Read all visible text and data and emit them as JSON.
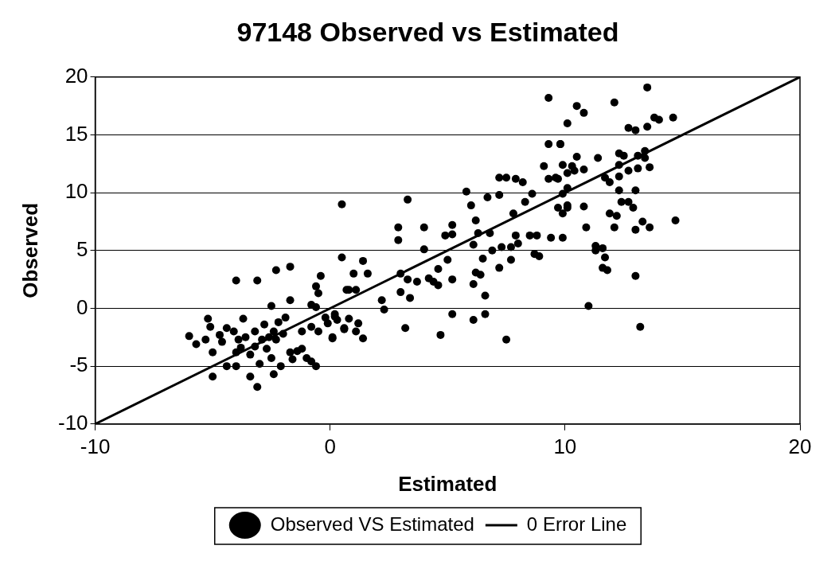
{
  "chart_data": {
    "type": "scatter",
    "title": "97148 Observed vs Estimated",
    "xlabel": "Estimated",
    "ylabel": "Observed",
    "xlim": [
      -10,
      20
    ],
    "ylim": [
      -10,
      20
    ],
    "xticks": [
      -10,
      0,
      10,
      20
    ],
    "yticks": [
      -10,
      -5,
      0,
      5,
      10,
      15,
      20
    ],
    "grid": "y",
    "legend": "bottom",
    "series": [
      {
        "name": "Observed VS Estimated",
        "type": "scatter",
        "marker": "circle",
        "color": "#000000",
        "x": [
          -4.0,
          -3.1,
          -2.3,
          -1.7,
          -0.4,
          -0.6,
          -0.5,
          -2.5,
          -1.7,
          -0.8,
          -0.6,
          0.5,
          0.5,
          0.7,
          -5.2,
          -5.1,
          -6.0,
          -5.7,
          -5.3,
          -5.0,
          -4.7,
          -4.6,
          -4.4,
          -4.4,
          -5.0,
          -4.1,
          -3.9,
          -3.8,
          -4.0,
          -3.7,
          -3.6,
          -3.4,
          -3.4,
          -3.1,
          -3.0,
          -3.2,
          -2.9,
          -2.8,
          -2.7,
          -2.5,
          -2.4,
          -2.4,
          -2.3,
          -2.2,
          -2.1,
          -1.9,
          -2.0,
          -1.7,
          -1.6,
          -1.4,
          -1.2,
          -1.2,
          -1.0,
          -0.8,
          -0.6,
          -0.8,
          -0.5,
          -0.2,
          -0.1,
          0.1,
          0.2,
          0.6,
          -4.0,
          -3.2,
          -2.6,
          0.2,
          0.3,
          0.1,
          0.8,
          0.6,
          1.2,
          1.1,
          1.4,
          1.0,
          1.4,
          1.6,
          0.8,
          1.1,
          2.2,
          2.3,
          3.2,
          2.9,
          2.9,
          3.3,
          3.0,
          3.0,
          3.3,
          3.4,
          3.7,
          4.0,
          4.0,
          4.2,
          4.4,
          4.6,
          4.6,
          4.7,
          4.9,
          5.0,
          5.2,
          5.2,
          5.2,
          5.2,
          5.8,
          6.0,
          6.2,
          6.1,
          6.1,
          6.2,
          6.4,
          6.5,
          6.6,
          6.6,
          6.1,
          6.3,
          6.8,
          6.7,
          6.9,
          7.2,
          7.2,
          7.2,
          7.3,
          7.5,
          7.5,
          7.7,
          7.7,
          7.8,
          7.9,
          8.0,
          7.9,
          8.2,
          8.3,
          8.5,
          8.8,
          8.6,
          8.7,
          8.9,
          9.1,
          9.3,
          9.3,
          9.3,
          9.4,
          9.7,
          9.8,
          9.9,
          9.9,
          10.1,
          10.1,
          9.9,
          10.1,
          10.1,
          9.9,
          13.5,
          12.1,
          10.5,
          10.8,
          13.8,
          14.0,
          14.6,
          13.5,
          12.7,
          13.0,
          9.8,
          10.5,
          11.4,
          12.3,
          12.5,
          13.4,
          13.4,
          13.1,
          10.3,
          10.4,
          10.8,
          12.3,
          13.6,
          12.7,
          13.1,
          11.7,
          11.9,
          12.3,
          9.6,
          13.0,
          12.3,
          10.1,
          12.4,
          12.7,
          12.9,
          9.7,
          10.8,
          11.9,
          12.2,
          10.9,
          12.1,
          13.0,
          13.3,
          13.6,
          14.7,
          11.3,
          11.3,
          11.6,
          11.7,
          11.6,
          11.8,
          13.0,
          11.0,
          13.2
        ],
        "values": [
          2.4,
          2.4,
          3.3,
          3.6,
          2.8,
          1.9,
          1.3,
          0.2,
          0.7,
          0.3,
          0.1,
          9.0,
          4.4,
          1.6,
          -0.9,
          -1.6,
          -2.4,
          -3.1,
          -2.7,
          -3.8,
          -2.3,
          -2.9,
          -1.7,
          -5.0,
          -5.9,
          -2.0,
          -2.7,
          -3.4,
          -5.0,
          -0.9,
          -2.5,
          -4.0,
          -5.9,
          -6.8,
          -4.8,
          -2.0,
          -2.7,
          -1.4,
          -3.5,
          -4.3,
          -2.0,
          -5.7,
          -2.7,
          -1.2,
          -5.0,
          -0.8,
          -2.2,
          -3.8,
          -4.4,
          -3.7,
          -2.0,
          -3.5,
          -4.3,
          -4.6,
          -5.0,
          -1.6,
          -2.0,
          -0.8,
          -1.3,
          -2.6,
          -0.7,
          -1.7,
          -3.8,
          -3.3,
          -2.5,
          -0.5,
          -1.0,
          -2.5,
          -0.9,
          -1.8,
          -1.3,
          -2.0,
          -2.6,
          3.0,
          4.1,
          3.0,
          1.6,
          1.6,
          0.7,
          -0.1,
          -1.7,
          7.0,
          5.9,
          9.4,
          3.0,
          1.4,
          2.5,
          0.9,
          2.3,
          7.0,
          5.1,
          2.6,
          2.3,
          2.0,
          3.4,
          -2.3,
          6.3,
          4.2,
          7.2,
          6.4,
          2.5,
          -0.5,
          10.1,
          8.9,
          7.6,
          5.5,
          2.1,
          3.1,
          2.9,
          4.3,
          1.1,
          -0.5,
          -1.0,
          6.5,
          6.5,
          9.6,
          5.0,
          11.3,
          9.8,
          3.5,
          5.3,
          11.3,
          -2.7,
          4.2,
          5.3,
          8.2,
          6.3,
          5.6,
          11.2,
          10.9,
          9.2,
          6.3,
          6.3,
          9.9,
          4.7,
          4.5,
          12.3,
          11.2,
          14.2,
          18.2,
          6.1,
          11.2,
          14.2,
          6.1,
          12.4,
          16.0,
          8.7,
          8.2,
          11.7,
          8.9,
          9.9,
          19.1,
          17.8,
          17.5,
          16.9,
          16.5,
          16.3,
          16.5,
          15.7,
          15.6,
          15.4,
          14.2,
          13.1,
          13.0,
          13.4,
          13.2,
          13.6,
          13.0,
          13.2,
          12.3,
          11.9,
          12.0,
          12.4,
          12.2,
          11.9,
          12.1,
          11.3,
          10.9,
          11.4,
          11.3,
          10.2,
          10.2,
          10.4,
          9.2,
          9.2,
          8.7,
          8.7,
          8.8,
          8.2,
          8.0,
          7.0,
          7.0,
          6.8,
          7.5,
          7.0,
          7.6,
          5.4,
          5.0,
          5.2,
          4.4,
          3.5,
          3.3,
          2.8,
          0.2,
          -1.6
        ]
      },
      {
        "name": "0 Error Line",
        "type": "line",
        "marker": "none",
        "line_style": "solid",
        "color": "#000000",
        "x": [
          -10,
          20
        ],
        "values": [
          -10,
          20
        ]
      }
    ]
  }
}
